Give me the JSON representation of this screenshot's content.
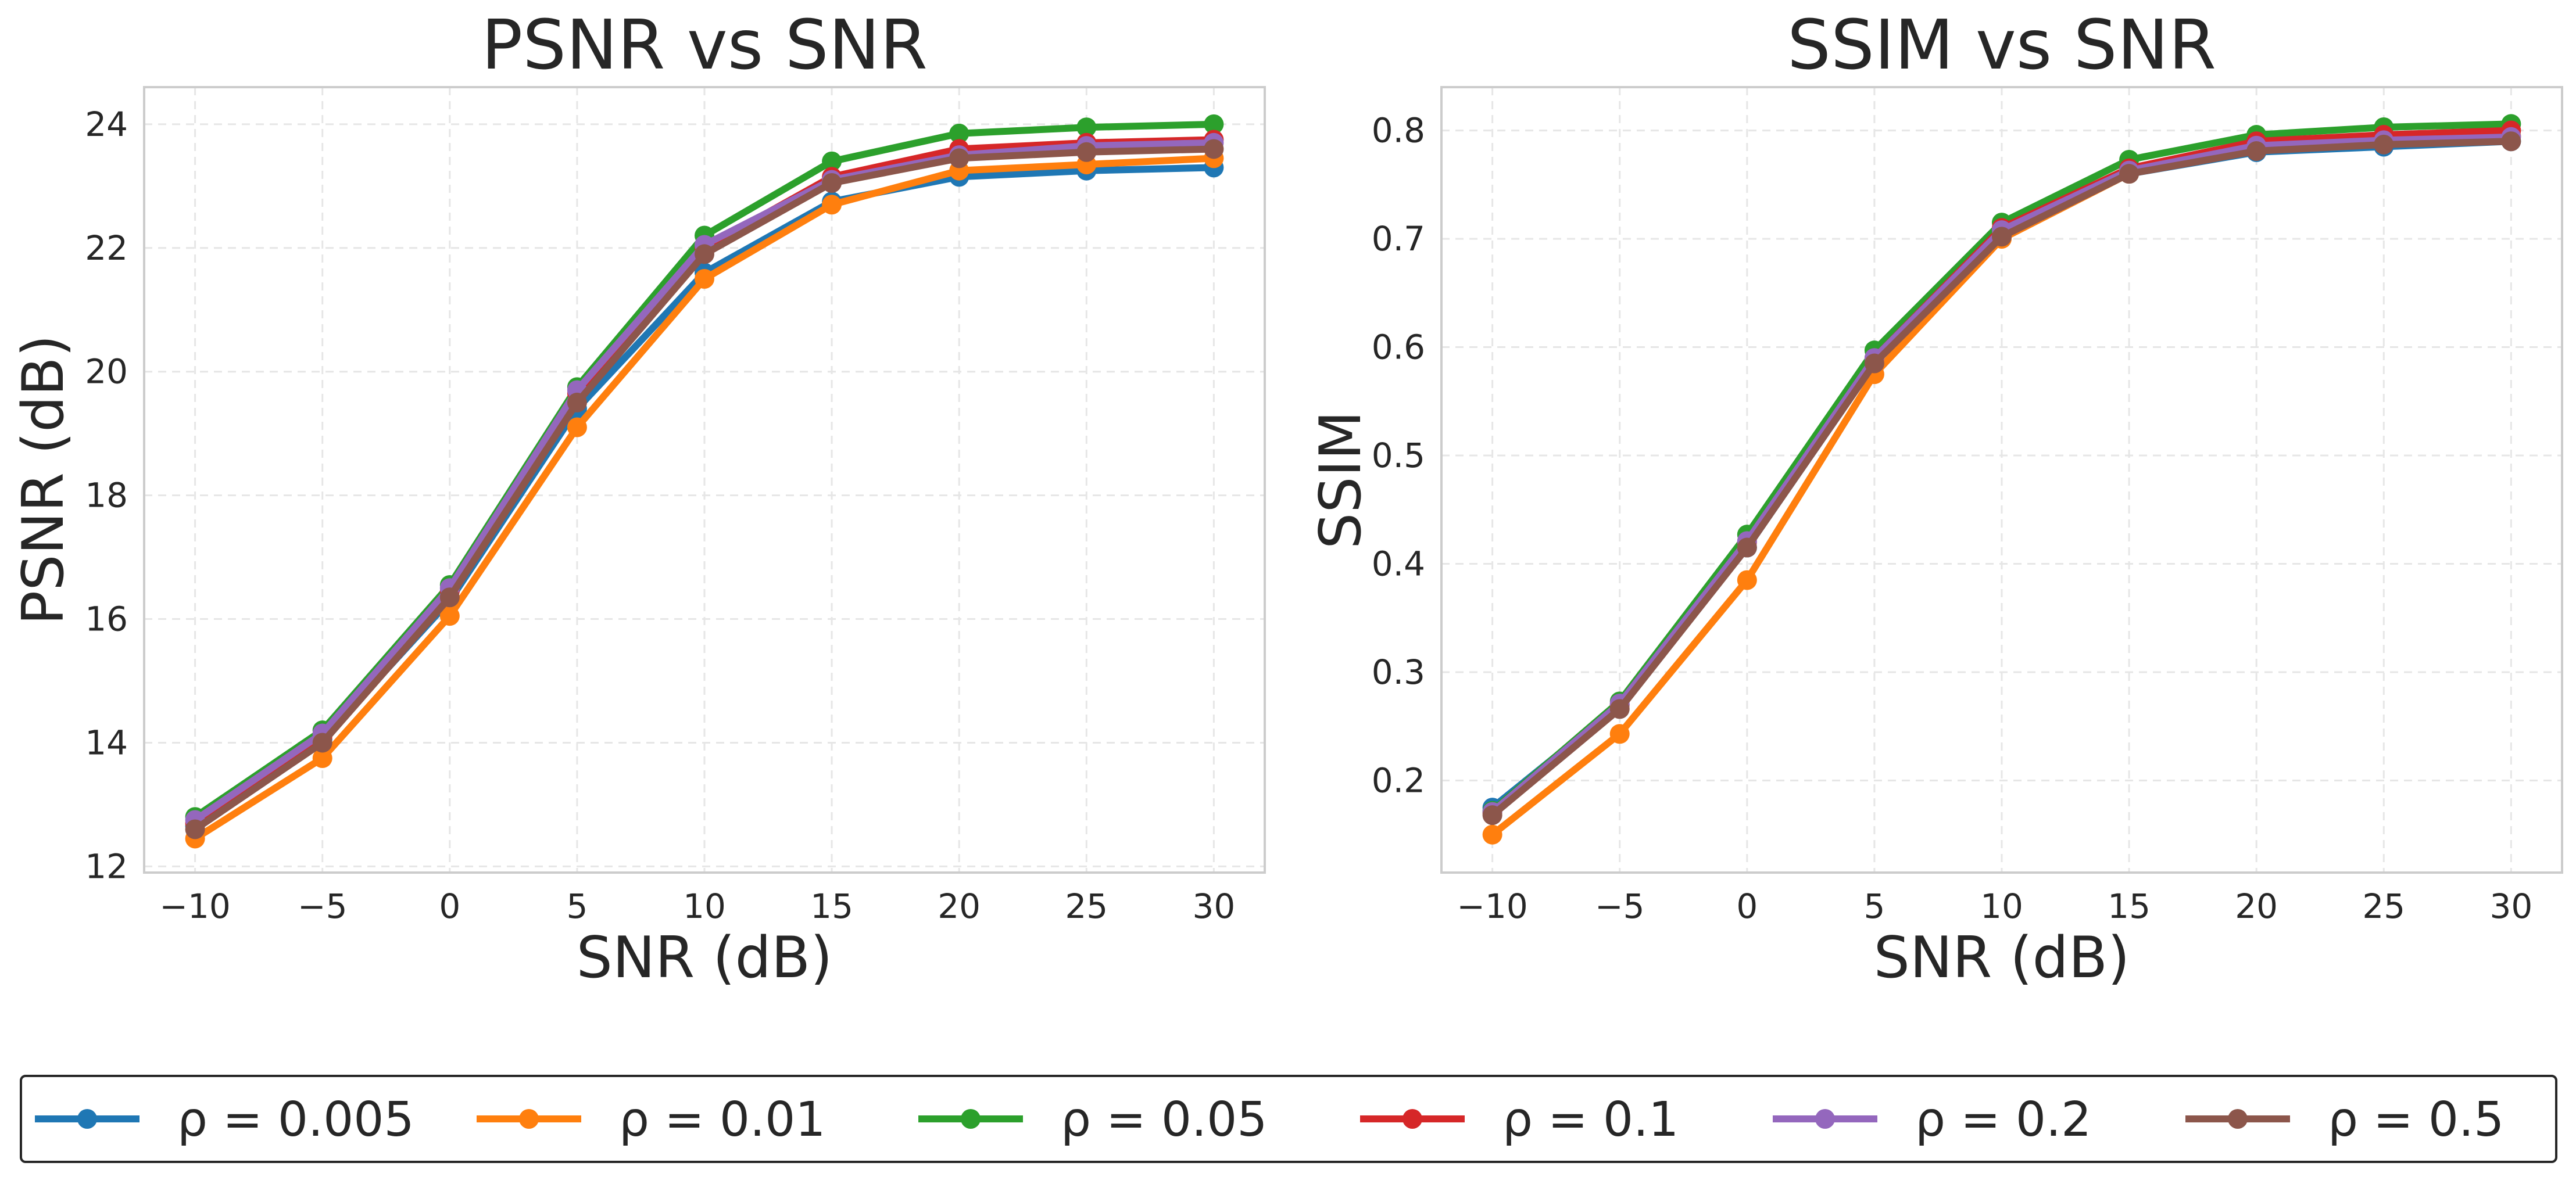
{
  "chart_data": [
    {
      "type": "line",
      "title": "PSNR vs SNR",
      "xlabel": "SNR (dB)",
      "ylabel": "PSNR (dB)",
      "x": [
        -10,
        -5,
        0,
        5,
        10,
        15,
        20,
        25,
        30
      ],
      "xlim": [
        -12,
        32
      ],
      "ylim": [
        11.9,
        24.6
      ],
      "xticks": [
        -10,
        -5,
        0,
        5,
        10,
        15,
        20,
        25,
        30
      ],
      "xtick_labels": [
        "−10",
        "−5",
        "0",
        "5",
        "10",
        "15",
        "20",
        "25",
        "30"
      ],
      "yticks": [
        12,
        14,
        16,
        18,
        20,
        22,
        24
      ],
      "ytick_labels": [
        "12",
        "14",
        "16",
        "18",
        "20",
        "22",
        "24"
      ],
      "grid": true,
      "series": [
        {
          "name": "ρ = 0.005",
          "values": [
            12.65,
            14.05,
            16.3,
            19.4,
            21.6,
            22.75,
            23.15,
            23.25,
            23.3
          ]
        },
        {
          "name": "ρ = 0.01",
          "values": [
            12.45,
            13.75,
            16.05,
            19.1,
            21.5,
            22.7,
            23.25,
            23.35,
            23.45
          ]
        },
        {
          "name": "ρ = 0.05",
          "values": [
            12.8,
            14.2,
            16.55,
            19.75,
            22.2,
            23.4,
            23.85,
            23.95,
            24.0
          ]
        },
        {
          "name": "ρ = 0.1",
          "values": [
            12.7,
            14.1,
            16.45,
            19.65,
            22.0,
            23.15,
            23.6,
            23.7,
            23.75
          ]
        },
        {
          "name": "ρ = 0.2",
          "values": [
            12.75,
            14.15,
            16.5,
            19.7,
            22.05,
            23.1,
            23.5,
            23.65,
            23.7
          ]
        },
        {
          "name": "ρ = 0.5",
          "values": [
            12.6,
            14.0,
            16.35,
            19.5,
            21.9,
            23.05,
            23.45,
            23.55,
            23.6
          ]
        }
      ]
    },
    {
      "type": "line",
      "title": "SSIM vs SNR",
      "xlabel": "SNR (dB)",
      "ylabel": "SSIM",
      "x": [
        -10,
        -5,
        0,
        5,
        10,
        15,
        20,
        25,
        30
      ],
      "xlim": [
        -12,
        32
      ],
      "ylim": [
        0.115,
        0.84
      ],
      "xticks": [
        -10,
        -5,
        0,
        5,
        10,
        15,
        20,
        25,
        30
      ],
      "xtick_labels": [
        "−10",
        "−5",
        "0",
        "5",
        "10",
        "15",
        "20",
        "25",
        "30"
      ],
      "yticks": [
        0.2,
        0.3,
        0.4,
        0.5,
        0.6,
        0.7,
        0.8
      ],
      "ytick_labels": [
        "0.2",
        "0.3",
        "0.4",
        "0.5",
        "0.6",
        "0.7",
        "0.8"
      ],
      "grid": true,
      "series": [
        {
          "name": "ρ = 0.005",
          "values": [
            0.175,
            0.27,
            0.415,
            0.585,
            0.705,
            0.76,
            0.78,
            0.785,
            0.79
          ]
        },
        {
          "name": "ρ = 0.01",
          "values": [
            0.15,
            0.243,
            0.385,
            0.575,
            0.7,
            0.76,
            0.785,
            0.79,
            0.795
          ]
        },
        {
          "name": "ρ = 0.05",
          "values": [
            0.172,
            0.273,
            0.427,
            0.597,
            0.715,
            0.773,
            0.796,
            0.803,
            0.806
          ]
        },
        {
          "name": "ρ = 0.1",
          "values": [
            0.17,
            0.27,
            0.42,
            0.59,
            0.71,
            0.765,
            0.79,
            0.796,
            0.8
          ]
        },
        {
          "name": "ρ = 0.2",
          "values": [
            0.171,
            0.271,
            0.421,
            0.59,
            0.708,
            0.763,
            0.786,
            0.791,
            0.794
          ]
        },
        {
          "name": "ρ = 0.5",
          "values": [
            0.168,
            0.266,
            0.415,
            0.585,
            0.702,
            0.76,
            0.781,
            0.787,
            0.79
          ]
        }
      ]
    }
  ],
  "legend": {
    "placement": "bottom",
    "entries": [
      "ρ = 0.005",
      "ρ = 0.01",
      "ρ = 0.05",
      "ρ = 0.1",
      "ρ = 0.2",
      "ρ = 0.5"
    ]
  },
  "colors": {
    "series": [
      "#1f77b4",
      "#ff7f0e",
      "#2ca02c",
      "#d62728",
      "#9467bd",
      "#8c564b"
    ],
    "axes_edge": "#cccccc",
    "grid": "#e6e6e6",
    "text": "#262626"
  }
}
